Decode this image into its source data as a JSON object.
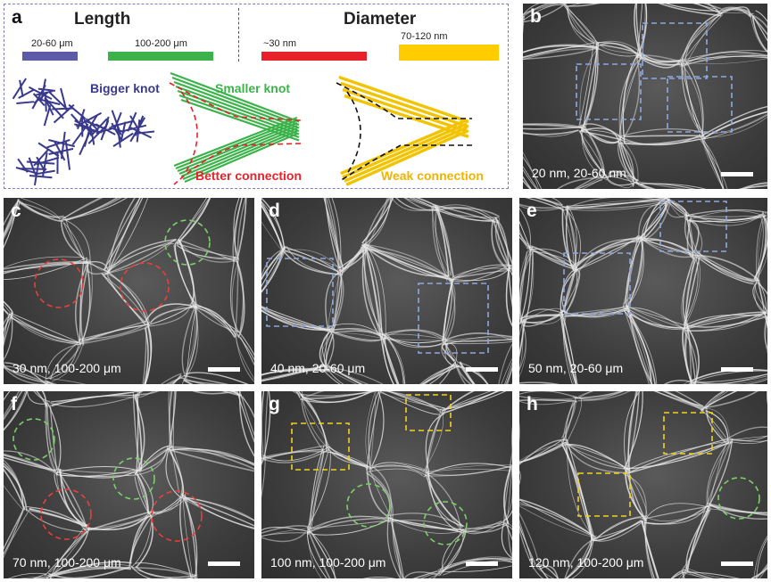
{
  "schematic": {
    "letter": "a",
    "length_title": "Length",
    "diameter_title": "Diameter",
    "length_bars": [
      {
        "label": "20-60 μm",
        "color": "#5b5ba8"
      },
      {
        "label": "100-200 μm",
        "color": "#3cb34a"
      }
    ],
    "diameter_bars": [
      {
        "label": "~30 nm",
        "color": "#e8222a"
      },
      {
        "label": "70-120 nm",
        "color": "#ffcc00"
      }
    ],
    "labels": {
      "bigger_knot": "Bigger knot",
      "smaller_knot": "Smaller knot",
      "better_connection": "Better connection",
      "weak_connection": "Weak connection"
    },
    "colors": {
      "bigger_knot": "#3a3a8c",
      "smaller_knot": "#3cb34a",
      "better_connection": "#e8222a",
      "weak_connection": "#f0b400"
    }
  },
  "panels": [
    {
      "letter": "b",
      "caption": "20 nm, 20-60 nm"
    },
    {
      "letter": "c",
      "caption": "30 nm, 100-200 μm"
    },
    {
      "letter": "d",
      "caption": "40 nm, 20-60 μm"
    },
    {
      "letter": "e",
      "caption": "50 nm, 20-60 μm"
    },
    {
      "letter": "f",
      "caption": "70 nm, 100-200 μm"
    },
    {
      "letter": "g",
      "caption": "100 nm, 100-200 μm"
    },
    {
      "letter": "h",
      "caption": "120 nm, 100-200 μm"
    }
  ],
  "marker_colors": {
    "blue": "#8fa8e0",
    "red": "#e8403a",
    "green": "#7ccf6a",
    "yellow": "#f2d21c"
  }
}
